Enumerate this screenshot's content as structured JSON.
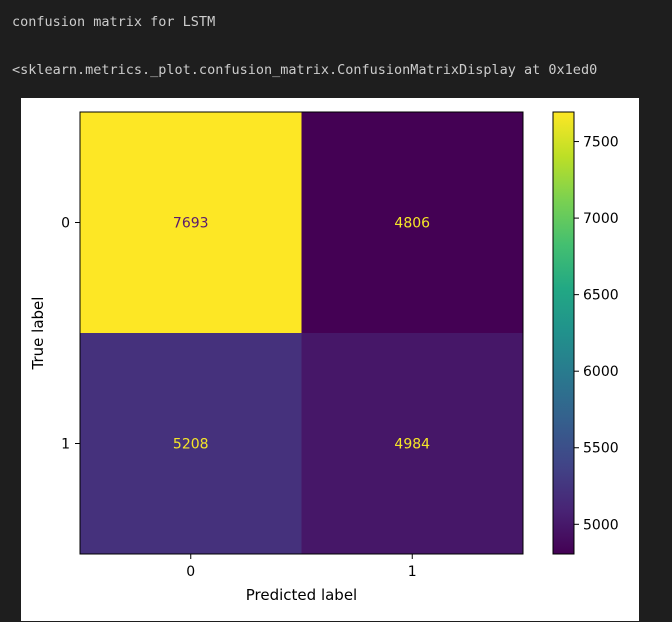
{
  "output": {
    "line1": "confusion matrix for LSTM",
    "line2": "<sklearn.metrics._plot.confusion_matrix.ConfusionMatrixDisplay at 0x1ed0"
  },
  "chart_data": {
    "type": "heatmap",
    "xlabel": "Predicted label",
    "ylabel": "True label",
    "x_ticklabels": [
      "0",
      "1"
    ],
    "y_ticklabels": [
      "0",
      "1"
    ],
    "matrix": [
      [
        7693,
        4806
      ],
      [
        5208,
        4984
      ]
    ],
    "colormap": "viridis",
    "colorbar": {
      "ticks": [
        5000,
        5500,
        6000,
        6500,
        7000,
        7500
      ],
      "range": [
        4806,
        7693
      ]
    },
    "colors": {
      "high": "#fde725",
      "low": "#440154",
      "cell_text_on_dark": "#f5e628",
      "cell_text_on_light": "#5a1a6e"
    }
  }
}
